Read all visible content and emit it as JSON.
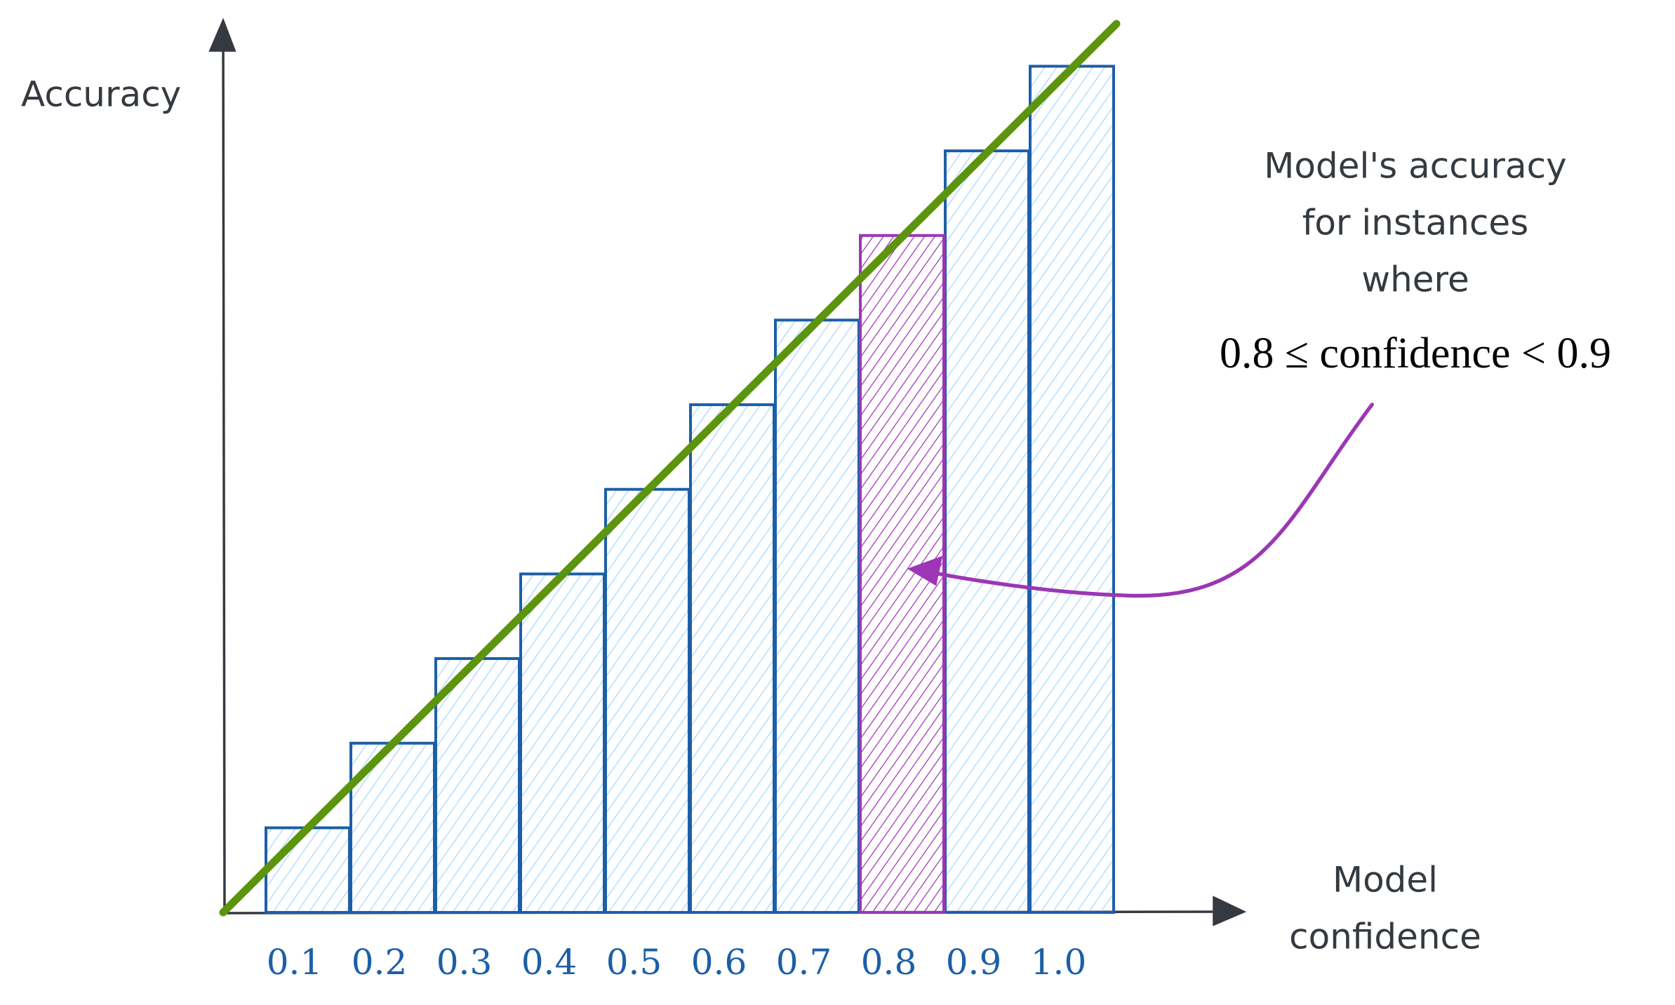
{
  "chart_data": {
    "type": "bar",
    "y_label": "Accuracy",
    "x_label": [
      "Model",
      "confidence"
    ],
    "categories": [
      "0.1",
      "0.2",
      "0.3",
      "0.4",
      "0.5",
      "0.6",
      "0.7",
      "0.8",
      "0.9",
      "1.0"
    ],
    "values": [
      0.1,
      0.2,
      0.3,
      0.4,
      0.5,
      0.6,
      0.7,
      0.8,
      0.9,
      1.0
    ],
    "color": "#1c5fa8",
    "fill_color": "#a5d8ff",
    "highlight_index": 7,
    "highlight_color": "#9c36b5",
    "ylim": [
      0,
      1.07
    ],
    "annotation": [
      "Model's accuracy",
      "for instances",
      "where",
      "0.8 ≤ confidence < 0.9"
    ]
  }
}
